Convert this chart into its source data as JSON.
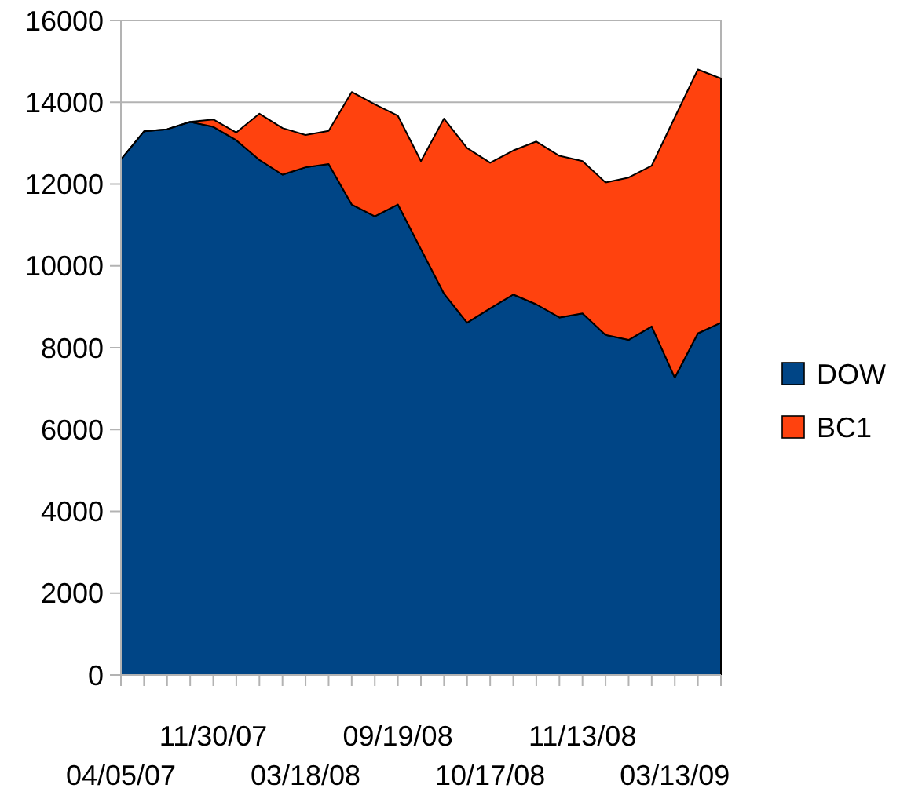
{
  "chart_data": {
    "type": "area",
    "stacked": true,
    "categories": [
      "04/05/07",
      null,
      null,
      null,
      "11/30/07",
      null,
      null,
      null,
      "03/18/08",
      null,
      null,
      null,
      "09/19/08",
      null,
      null,
      null,
      "10/17/08",
      null,
      null,
      null,
      "11/13/08",
      null,
      null,
      null,
      "03/13/09",
      null,
      null
    ],
    "series": [
      {
        "name": "DOW",
        "color": "#004586",
        "values": [
          12600,
          13290,
          13340,
          13520,
          13400,
          13070,
          12590,
          12230,
          12410,
          12490,
          11500,
          11210,
          11500,
          10410,
          9320,
          8610,
          8960,
          9300,
          9060,
          8740,
          8840,
          8310,
          8190,
          8520,
          7270,
          8350,
          8610
        ]
      },
      {
        "name": "BC1",
        "color": "#ff420e",
        "values": [
          0,
          0,
          0,
          0,
          180,
          190,
          1130,
          1140,
          790,
          810,
          2750,
          2740,
          2170,
          2150,
          4280,
          4270,
          3560,
          3520,
          3980,
          3950,
          3720,
          3730,
          3970,
          3930,
          6360,
          6450,
          5970
        ]
      }
    ],
    "ylim": [
      0,
      16000
    ],
    "yticks": [
      0,
      2000,
      4000,
      6000,
      8000,
      10000,
      12000,
      14000,
      16000
    ],
    "grid": "y",
    "legend": "right"
  }
}
